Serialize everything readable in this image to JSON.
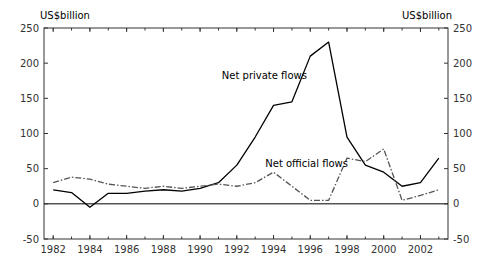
{
  "chart_data": {
    "type": "line",
    "x": [
      1982,
      1983,
      1984,
      1985,
      1986,
      1987,
      1988,
      1989,
      1990,
      1991,
      1992,
      1993,
      1994,
      1995,
      1996,
      1997,
      1998,
      1999,
      2000,
      2001,
      2002,
      2003
    ],
    "series": [
      {
        "color": "#000000",
        "line_style": "solid",
        "values": [
          20,
          16,
          -5,
          15,
          15,
          18,
          20,
          18,
          22,
          30,
          55,
          95,
          140,
          145,
          210,
          230,
          95,
          55,
          45,
          25,
          30,
          65
        ]
      },
      {
        "color": "#555555",
        "line_style": "dashdot",
        "values": [
          30,
          38,
          35,
          28,
          25,
          22,
          25,
          22,
          25,
          28,
          25,
          30,
          45,
          25,
          5,
          5,
          65,
          60,
          78,
          5,
          12,
          20
        ]
      }
    ],
    "xlim": [
      1981.5,
      2003.5
    ],
    "xticks": [
      1982,
      1984,
      1986,
      1988,
      1990,
      1992,
      1994,
      1996,
      1998,
      2000,
      2002
    ],
    "ylim": [
      -50,
      250
    ],
    "yticks": [
      -50,
      0,
      50,
      100,
      150,
      200,
      250
    ],
    "y2lim": [
      -50,
      250
    ],
    "y2ticks": [
      -50,
      0,
      50,
      100,
      150,
      200,
      250
    ],
    "ylabel": "US$billion",
    "y2label": "US$billion",
    "grid": false,
    "annotations": [
      {
        "text": "Net private flows",
        "x": 1993.5,
        "y": 178
      },
      {
        "text": "Net official flows",
        "x": 1995.8,
        "y": 53
      }
    ]
  }
}
